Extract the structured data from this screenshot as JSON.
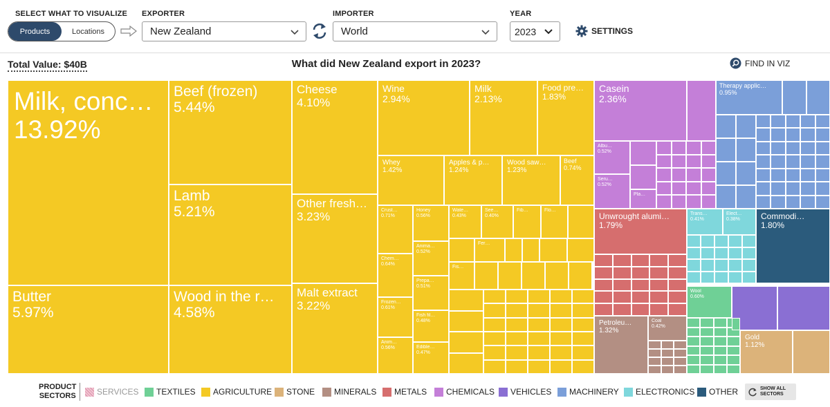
{
  "controls": {
    "visualize_label": "SELECT WHAT TO VISUALIZE",
    "toggle": {
      "products": "Products",
      "locations": "Locations",
      "active": "products"
    },
    "exporter_label": "EXPORTER",
    "exporter_value": "New Zealand",
    "importer_label": "IMPORTER",
    "importer_value": "World",
    "year_label": "YEAR",
    "year_value": "2023",
    "settings_label": "SETTINGS"
  },
  "summary": {
    "total_value": "Total Value: $40B",
    "title": "What did New Zealand export in 2023?",
    "find_label": "FIND IN VIZ"
  },
  "treemap": {
    "tiles": [
      {
        "name": "Milk, conc…",
        "pct": "13.92%",
        "sector": "agriculture",
        "share": 13.92
      },
      {
        "name": "Butter",
        "pct": "5.97%",
        "sector": "agriculture",
        "share": 5.97
      },
      {
        "name": "Beef (frozen)",
        "pct": "5.44%",
        "sector": "agriculture",
        "share": 5.44
      },
      {
        "name": "Lamb",
        "pct": "5.21%",
        "sector": "agriculture",
        "share": 5.21
      },
      {
        "name": "Wood in the r…",
        "pct": "4.58%",
        "sector": "agriculture",
        "share": 4.58
      },
      {
        "name": "Cheese",
        "pct": "4.10%",
        "sector": "agriculture",
        "share": 4.1
      },
      {
        "name": "Other fresh…",
        "pct": "3.23%",
        "sector": "agriculture",
        "share": 3.23
      },
      {
        "name": "Malt extract",
        "pct": "3.22%",
        "sector": "agriculture",
        "share": 3.22
      },
      {
        "name": "Wine",
        "pct": "2.94%",
        "sector": "agriculture",
        "share": 2.94
      },
      {
        "name": "Milk",
        "pct": "2.13%",
        "sector": "agriculture",
        "share": 2.13
      },
      {
        "name": "Food pre…",
        "pct": "1.83%",
        "sector": "agriculture",
        "share": 1.83
      },
      {
        "name": "Whey",
        "pct": "1.42%",
        "sector": "agriculture",
        "share": 1.42
      },
      {
        "name": "Apples & p…",
        "pct": "1.24%",
        "sector": "agriculture",
        "share": 1.24
      },
      {
        "name": "Wood saw…",
        "pct": "1.23%",
        "sector": "agriculture",
        "share": 1.23
      },
      {
        "name": "Beef",
        "pct": "0.74%",
        "sector": "agriculture",
        "share": 0.74
      },
      {
        "name": "Crust…",
        "pct": "0.71%",
        "sector": "agriculture",
        "share": 0.71
      },
      {
        "name": "Honey",
        "pct": "0.56%",
        "sector": "agriculture",
        "share": 0.56
      },
      {
        "name": "Wate…",
        "pct": "0.43%",
        "sector": "agriculture",
        "share": 0.43
      },
      {
        "name": "See…",
        "pct": "0.40%",
        "sector": "agriculture",
        "share": 0.4
      },
      {
        "name": "Fib…",
        "pct": "",
        "sector": "agriculture",
        "share": null
      },
      {
        "name": "Flo…",
        "pct": "",
        "sector": "agriculture",
        "share": null
      },
      {
        "name": "Anima…",
        "pct": "0.52%",
        "sector": "agriculture",
        "share": 0.52
      },
      {
        "name": "Chem…",
        "pct": "0.64%",
        "sector": "agriculture",
        "share": 0.64
      },
      {
        "name": "Prepa…",
        "pct": "0.51%",
        "sector": "agriculture",
        "share": 0.51
      },
      {
        "name": "Frozen…",
        "pct": "0.61%",
        "sector": "agriculture",
        "share": 0.61
      },
      {
        "name": "Fish fil…",
        "pct": "0.48%",
        "sector": "agriculture",
        "share": 0.48
      },
      {
        "name": "Anim…",
        "pct": "0.56%",
        "sector": "agriculture",
        "share": 0.56
      },
      {
        "name": "Edible…",
        "pct": "0.47%",
        "sector": "agriculture",
        "share": 0.47
      },
      {
        "name": "Fer…",
        "pct": "",
        "sector": "agriculture",
        "share": null
      },
      {
        "name": "Fis…",
        "pct": "",
        "sector": "agriculture",
        "share": null
      },
      {
        "name": "Casein",
        "pct": "2.36%",
        "sector": "chemicals",
        "share": 2.36
      },
      {
        "name": "Albu…",
        "pct": "0.52%",
        "sector": "chemicals",
        "share": 0.52
      },
      {
        "name": "Seru…",
        "pct": "0.52%",
        "sector": "chemicals",
        "share": 0.52
      },
      {
        "name": "Pla…",
        "pct": "",
        "sector": "chemicals",
        "share": null
      },
      {
        "name": "Therapy applic…",
        "pct": "0.95%",
        "sector": "machinery",
        "share": 0.95
      },
      {
        "name": "Unwrought alumi…",
        "pct": "1.79%",
        "sector": "metals",
        "share": 1.79
      },
      {
        "name": "Trans…",
        "pct": "0.41%",
        "sector": "electronics",
        "share": 0.41
      },
      {
        "name": "Elect…",
        "pct": "0.38%",
        "sector": "electronics",
        "share": 0.38
      },
      {
        "name": "Commodi…",
        "pct": "1.80%",
        "sector": "other",
        "share": 1.8
      },
      {
        "name": "Wool",
        "pct": "0.60%",
        "sector": "textiles",
        "share": 0.6
      },
      {
        "name": "Petroleu…",
        "pct": "1.32%",
        "sector": "minerals",
        "share": 1.32
      },
      {
        "name": "Coal",
        "pct": "0.42%",
        "sector": "minerals",
        "share": 0.42
      },
      {
        "name": "Gold",
        "pct": "1.12%",
        "sector": "stone",
        "share": 1.12
      }
    ]
  },
  "legend": {
    "title_line1": "PRODUCT",
    "title_line2": "SECTORS",
    "sectors": [
      {
        "id": "services",
        "label": "SERVICES",
        "color": "#d88fa8",
        "disabled": true
      },
      {
        "id": "textiles",
        "label": "TEXTILES",
        "color": "#6fd096"
      },
      {
        "id": "agriculture",
        "label": "AGRICULTURE",
        "color": "#f4c924"
      },
      {
        "id": "stone",
        "label": "STONE",
        "color": "#dcb37a"
      },
      {
        "id": "minerals",
        "label": "MINERALS",
        "color": "#b38f83"
      },
      {
        "id": "metals",
        "label": "METALS",
        "color": "#d66e6e"
      },
      {
        "id": "chemicals",
        "label": "CHEMICALS",
        "color": "#c47fd8"
      },
      {
        "id": "vehicles",
        "label": "VEHICLES",
        "color": "#8a6fd3"
      },
      {
        "id": "machinery",
        "label": "MACHINERY",
        "color": "#7b9fd9"
      },
      {
        "id": "electronics",
        "label": "ELECTRONICS",
        "color": "#7fd7dc"
      },
      {
        "id": "other",
        "label": "OTHER",
        "color": "#2b5b7c"
      }
    ],
    "show_all_line1": "SHOW ALL",
    "show_all_line2": "SECTORS"
  }
}
